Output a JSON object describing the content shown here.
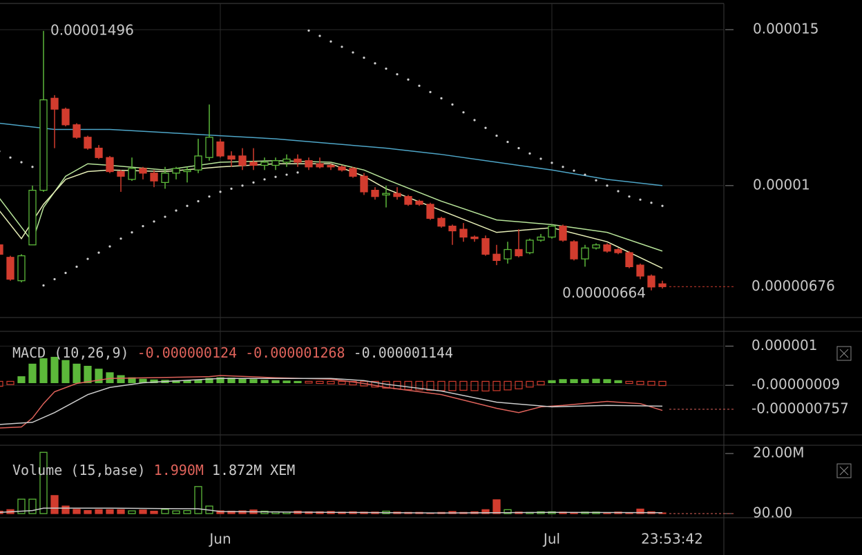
{
  "clock": "23:53:42",
  "chart_data": [
    {
      "type": "candlestick",
      "up_color": "#5cb83a",
      "down_color": "#d23c2e",
      "xlim": [
        0.0625,
        65.5625
      ],
      "xticks": [
        {
          "value": 20,
          "label": "Jun"
        },
        {
          "value": 50,
          "label": "Jul"
        }
      ],
      "ylim": [
        5.77e-06,
        1.584e-05
      ],
      "yticks": [
        1.5e-05,
        1e-05
      ],
      "grid": true,
      "x": [
        0,
        1,
        2,
        3,
        4,
        5,
        6,
        7,
        8,
        9,
        10,
        11,
        12,
        13,
        14,
        15,
        16,
        17,
        18,
        19,
        20,
        21,
        22,
        23,
        24,
        25,
        26,
        27,
        28,
        29,
        30,
        31,
        32,
        33,
        34,
        35,
        36,
        37,
        38,
        39,
        40,
        41,
        42,
        43,
        44,
        45,
        46,
        47,
        48,
        49,
        50,
        51,
        52,
        53,
        54,
        55,
        56,
        57,
        58,
        59,
        60
      ],
      "open": [
        8.1e-06,
        7.7e-06,
        6.95e-06,
        8.1e-06,
        9.85e-06,
        1.28e-05,
        1.245e-05,
        1.195e-05,
        1.155e-05,
        1.12e-05,
        1.09e-05,
        1.045e-05,
        1.02e-05,
        1.055e-05,
        1.04e-05,
        1.01e-05,
        1.04e-05,
        1.045e-05,
        1.05e-05,
        1.09e-05,
        1.14e-05,
        1.095e-05,
        1.095e-05,
        1.075e-05,
        1.065e-05,
        1.065e-05,
        1.075e-05,
        1.085e-05,
        1.08e-05,
        1.07e-05,
        1.065e-05,
        1.06e-05,
        1.055e-05,
        1.03e-05,
        9.85e-06,
        9.7e-06,
        9.75e-06,
        9.65e-06,
        9.5e-06,
        9.4e-06,
        8.95e-06,
        8.7e-06,
        8.6e-06,
        8.35e-06,
        8.3e-06,
        7.8e-06,
        7.65e-06,
        7.95e-06,
        7.85e-06,
        8.25e-06,
        8.35e-06,
        8.7e-06,
        8.2e-06,
        7.65e-06,
        8e-06,
        8.1e-06,
        7.95e-06,
        7.85e-06,
        7.45e-06,
        7.1e-06,
        6.85e-06
      ],
      "close": [
        7.8e-06,
        7e-06,
        7.75e-06,
        9.85e-06,
        1.275e-05,
        1.245e-05,
        1.195e-05,
        1.155e-05,
        1.12e-05,
        1.09e-05,
        1.045e-05,
        1.03e-05,
        1.055e-05,
        1.04e-05,
        1.015e-05,
        1.04e-05,
        1.055e-05,
        1.05e-05,
        1.095e-05,
        1.155e-05,
        1.095e-05,
        1.085e-05,
        1.065e-05,
        1.065e-05,
        1.075e-05,
        1.08e-05,
        1.085e-05,
        1.075e-05,
        1.06e-05,
        1.06e-05,
        1.06e-05,
        1.05e-05,
        1.03e-05,
        9.8e-06,
        9.65e-06,
        9.75e-06,
        9.65e-06,
        9.4e-06,
        9.4e-06,
        8.95e-06,
        8.7e-06,
        8.55e-06,
        8.35e-06,
        8.3e-06,
        7.8e-06,
        7.6e-06,
        7.95e-06,
        7.75e-06,
        8.25e-06,
        8.35e-06,
        8.7e-06,
        8.25e-06,
        7.65e-06,
        8e-06,
        8.1e-06,
        7.9e-06,
        7.85e-06,
        7.4e-06,
        7.1e-06,
        6.75e-06,
        6.76e-06
      ],
      "high": [
        8.15e-06,
        7.75e-06,
        7.8e-06,
        1e-05,
        1.496e-05,
        1.29e-05,
        1.25e-05,
        1.2e-05,
        1.16e-05,
        1.13e-05,
        1.095e-05,
        1.05e-05,
        1.09e-05,
        1.06e-05,
        1.05e-05,
        1.06e-05,
        1.06e-05,
        1.06e-05,
        1.15e-05,
        1.26e-05,
        1.15e-05,
        1.11e-05,
        1.12e-05,
        1.12e-05,
        1.09e-05,
        1.09e-05,
        1.1e-05,
        1.1e-05,
        1.09e-05,
        1.09e-05,
        1.07e-05,
        1.065e-05,
        1.06e-05,
        1.04e-05,
        9.95e-06,
        1e-05,
        9.95e-06,
        9.7e-06,
        9.55e-06,
        9.45e-06,
        9e-06,
        8.75e-06,
        8.8e-06,
        8.4e-06,
        8.4e-06,
        8.1e-06,
        8.2e-06,
        8.6e-06,
        8.3e-06,
        8.45e-06,
        8.75e-06,
        8.75e-06,
        8.25e-06,
        8.1e-06,
        8.15e-06,
        8.15e-06,
        8e-06,
        7.9e-06,
        7.5e-06,
        7.15e-06,
        6.95e-06
      ],
      "low": [
        7.75e-06,
        6.95e-06,
        6.9e-06,
        8.1e-06,
        9.8e-06,
        1.12e-05,
        1.19e-05,
        1.15e-05,
        1.115e-05,
        1.085e-05,
        1.04e-05,
        9.8e-06,
        1.015e-05,
        1.02e-05,
        9.95e-06,
        9.9e-06,
        1.02e-05,
        1.01e-05,
        1.04e-05,
        1.08e-05,
        1.09e-05,
        1.06e-05,
        1.05e-05,
        1.05e-05,
        1.05e-05,
        1.05e-05,
        1.06e-05,
        1.06e-05,
        1.05e-05,
        1.055e-05,
        1.05e-05,
        1.045e-05,
        1.025e-05,
        9.7e-06,
        9.55e-06,
        9.3e-06,
        9.55e-06,
        9.35e-06,
        9.35e-06,
        8.9e-06,
        8.65e-06,
        8.1e-06,
        8.2e-06,
        8.2e-06,
        7.75e-06,
        7.45e-06,
        7.5e-06,
        7.7e-06,
        7.8e-06,
        8.2e-06,
        8.3e-06,
        8.2e-06,
        7.6e-06,
        7.4e-06,
        7.95e-06,
        7.85e-06,
        7.8e-06,
        7.35e-06,
        7e-06,
        6.64e-06,
        6.7e-06
      ],
      "lines": [
        {
          "color": "#4ea6c8",
          "x": [
            0,
            5,
            10,
            15,
            20,
            25,
            30,
            35,
            40,
            45,
            50,
            55,
            60
          ],
          "values": [
            1.2e-05,
            1.18e-05,
            1.18e-05,
            1.17e-05,
            1.16e-05,
            1.15e-05,
            1.135e-05,
            1.12e-05,
            1.1e-05,
            1.075e-05,
            1.05e-05,
            1.02e-05,
            1e-05
          ]
        },
        {
          "color": "#b8e59a",
          "x": [
            0,
            3,
            4,
            6,
            8,
            10,
            15,
            20,
            25,
            30,
            33,
            35,
            40,
            45,
            50,
            55,
            60
          ],
          "values": [
            9.6e-06,
            8.2e-06,
            9.3e-06,
            1.03e-05,
            1.07e-05,
            1.065e-05,
            1.05e-05,
            1.075e-05,
            1.08e-05,
            1.075e-05,
            1.05e-05,
            1.02e-05,
            9.5e-06,
            8.9e-06,
            8.75e-06,
            8.5e-06,
            7.9e-06
          ]
        },
        {
          "color": "#e8f0b8",
          "x": [
            0,
            2,
            4,
            6,
            8,
            10,
            15,
            20,
            25,
            30,
            33,
            35,
            40,
            45,
            50,
            55,
            60
          ],
          "values": [
            9.2e-06,
            8.3e-06,
            9.4e-06,
            1.02e-05,
            1.045e-05,
            1.05e-05,
            1.045e-05,
            1.06e-05,
            1.07e-05,
            1.07e-05,
            1.03e-05,
            9.9e-06,
            9.2e-06,
            8.5e-06,
            8.65e-06,
            8.2e-06,
            7.35e-06
          ]
        }
      ],
      "sar": {
        "color": "#cfcfcf",
        "values": [
          1.11e-05,
          1.09e-05,
          1.075e-05,
          1.06e-05,
          6.8e-06,
          7e-06,
          7.2e-06,
          7.4e-06,
          7.65e-06,
          7.85e-06,
          8.05e-06,
          8.3e-06,
          8.5e-06,
          8.7e-06,
          8.85e-06,
          9e-06,
          9.2e-06,
          9.35e-06,
          9.5e-06,
          9.65e-06,
          9.8e-06,
          9.9e-06,
          1e-05,
          1.01e-05,
          1.02e-05,
          1.028e-05,
          1.035e-05,
          1.042e-05,
          1.497e-05,
          1.48e-05,
          1.462e-05,
          1.445e-05,
          1.427e-05,
          1.41e-05,
          1.392e-05,
          1.375e-05,
          1.357e-05,
          1.34e-05,
          1.32e-05,
          1.3e-05,
          1.28e-05,
          1.26e-05,
          1.235e-05,
          1.21e-05,
          1.185e-05,
          1.16e-05,
          1.14e-05,
          1.12e-05,
          1.103e-05,
          1.086e-05,
          1.073e-05,
          1.06e-05,
          1.048e-05,
          1.035e-05,
          1.017e-05,
          1e-05,
          9.82e-06,
          9.65e-06,
          9.55e-06,
          9.45e-06,
          9.35e-06
        ]
      },
      "annotations": [
        {
          "x": 4,
          "value": 1.496e-05,
          "label": "0.00001496"
        },
        {
          "x": 59,
          "value": 6.64e-06,
          "label": "0.00000664"
        }
      ],
      "last_value": {
        "value": 6.76e-06,
        "label": "0.00000676"
      }
    },
    {
      "type": "macd",
      "ylim": [
        -1.47e-06,
        1.41e-06
      ],
      "yticks": [
        1e-06,
        {
          "value": -9e-08,
          "label": "-0.00000009"
        }
      ],
      "legend": {
        "title": "MACD (10,26,9)",
        "values": [
          {
            "value": -1.24e-07,
            "label": "-0.000000124",
            "color": "#e0635b"
          },
          {
            "value": -1.268e-06,
            "label": "-0.000001268",
            "color": "#e0635b"
          },
          {
            "value": -1.144e-06,
            "label": "-0.000001144",
            "color": "#cccccc"
          }
        ]
      },
      "histogram": [
        -1e-07,
        -5e-08,
        1.3e-07,
        4.8e-07,
        6.3e-07,
        6.7e-07,
        5.8e-07,
        4.8e-07,
        4.2e-07,
        3.4e-07,
        2.4e-07,
        1.6e-07,
        1e-07,
        6e-08,
        4e-08,
        3e-08,
        2e-08,
        2e-08,
        4e-08,
        8e-08,
        1e-07,
        9e-08,
        7e-08,
        5e-08,
        3e-08,
        2e-08,
        1e-08,
        0,
        -1e-08,
        -2e-08,
        -3e-08,
        -4e-08,
        -6e-08,
        -9e-08,
        -1.2e-07,
        -1.5e-07,
        -1.7e-07,
        -1.9e-07,
        -2e-07,
        -2.1e-07,
        -2.2e-07,
        -2.2e-07,
        -2.1e-07,
        -2.2e-07,
        -2.3e-07,
        -2.2e-07,
        -2e-07,
        -1.7e-07,
        -1.2e-07,
        -6e-08,
        2e-08,
        5e-08,
        5e-08,
        5e-08,
        6e-08,
        5e-08,
        2e-08,
        -2e-08,
        -5e-08,
        -7e-08,
        -8e-08
      ],
      "lines": [
        {
          "color": "#e0635b",
          "x": [
            0,
            2,
            3,
            4,
            5,
            7,
            10,
            19,
            20,
            25,
            30,
            33,
            35,
            40,
            45,
            47,
            49,
            51,
            55,
            58,
            60
          ],
          "values": [
            -1.28e-06,
            -1.25e-06,
            -1e-06,
            -6e-07,
            -2.7e-07,
            -4e-08,
            1e-07,
            1.5e-07,
            1.8e-07,
            1.2e-07,
            8e-08,
            -4e-08,
            -1.5e-07,
            -3.5e-07,
            -7.3e-07,
            -8.5e-07,
            -6.9e-07,
            -6.5e-07,
            -5.4e-07,
            -6e-07,
            -7.9e-07
          ]
        },
        {
          "color": "#cccccc",
          "x": [
            0,
            3,
            5,
            8,
            10,
            13,
            20,
            30,
            33,
            35,
            40,
            45,
            50,
            55,
            60
          ],
          "values": [
            -1.18e-06,
            -1.12e-06,
            -8.5e-07,
            -3.5e-07,
            -1.5e-07,
            -2e-08,
            1e-07,
            1e-07,
            4e-08,
            -6e-08,
            -2.5e-07,
            -5.6e-07,
            -6.9e-07,
            -6.5e-07,
            -6.7e-07
          ]
        }
      ],
      "last_value": {
        "value": -7.57e-07,
        "label": "-0.000000757"
      }
    },
    {
      "type": "volume",
      "ylim": [
        -1380000,
        22760000
      ],
      "yticks": [
        {
          "value": 20000000,
          "label": "20.00M"
        },
        {
          "value": 90,
          "label": "90.00"
        }
      ],
      "legend": {
        "title": "Volume (15,base)",
        "values": [
          {
            "value": 1990000,
            "label": "1.990M",
            "color": "#e0635b"
          },
          {
            "value": 1872000,
            "label": "1.872M",
            "color": "#cccccc"
          }
        ],
        "unit": "XEM"
      },
      "values": [
        800000,
        1300000,
        4800000,
        4800000,
        20400000,
        6000000,
        2500000,
        1400000,
        1000000,
        1300000,
        1300000,
        1300000,
        900000,
        1200000,
        800000,
        1400000,
        900000,
        1000000,
        9000000,
        2500000,
        900000,
        800000,
        900000,
        1200000,
        800000,
        600000,
        500000,
        800000,
        600000,
        600000,
        700000,
        500000,
        600000,
        500000,
        500000,
        800000,
        500000,
        400000,
        400000,
        200000,
        400000,
        700000,
        400000,
        600000,
        1300000,
        4600000,
        1300000,
        500000,
        400000,
        600000,
        600000,
        500000,
        400000,
        500000,
        500000,
        300000,
        500000,
        300000,
        1500000,
        600000,
        200000
      ],
      "lines": [
        {
          "color": "#cccccc",
          "x": [
            0,
            3,
            4,
            10,
            18,
            20,
            30,
            40,
            50,
            60
          ],
          "values": [
            400000,
            1000000,
            1800000,
            1800000,
            1600000,
            700000,
            400000,
            200000,
            400000,
            300000
          ]
        }
      ]
    }
  ]
}
